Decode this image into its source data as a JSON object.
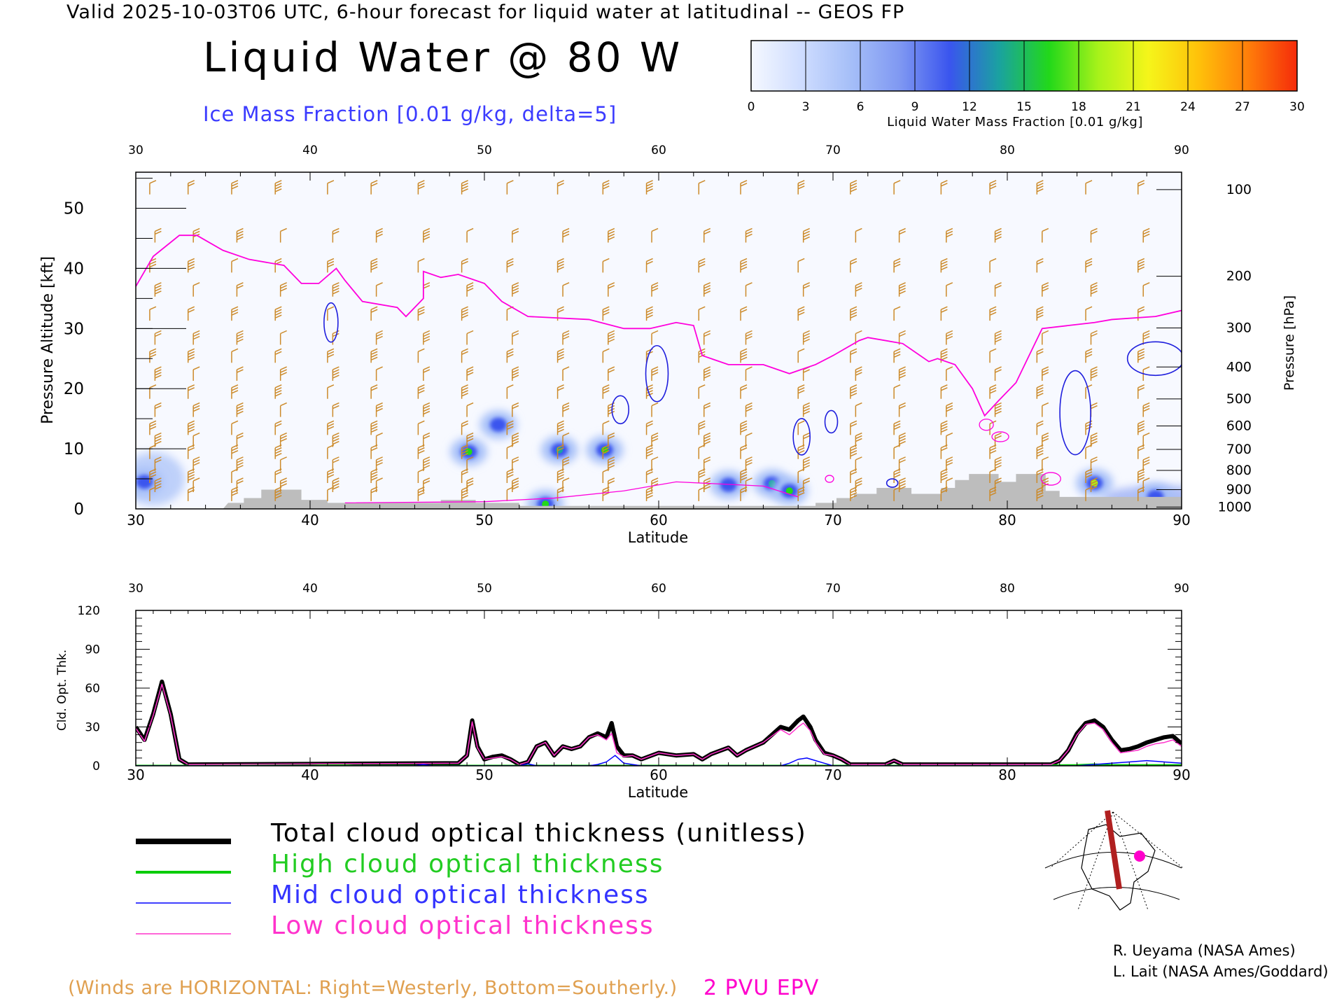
{
  "header": {
    "line": "Valid 2025-10-03T06 UTC, 6-hour forecast for liquid water at latitudinal -- GEOS FP",
    "title": "Liquid Water @ 80 W",
    "ice_label": "Ice Mass Fraction [0.01 g/kg, delta=5]"
  },
  "colorbar": {
    "label": "Liquid Water Mass Fraction [0.01 g/kg]",
    "ticks": [
      "0",
      "3",
      "6",
      "9",
      "12",
      "15",
      "18",
      "21",
      "24",
      "27",
      "30"
    ],
    "colors": [
      "#f5f8ff",
      "#cfddff",
      "#a6bff8",
      "#7f98f2",
      "#3a55ee",
      "#1aa2a0",
      "#22d81a",
      "#a8f21a",
      "#f5f51a",
      "#ffc20a",
      "#ff7f0a",
      "#f52b0a"
    ]
  },
  "chart_data": [
    {
      "type": "heatmap",
      "title": "Liquid Water @ 80 W",
      "xlabel": "Latitude",
      "ylabel": "Pressure Altitude [kft]",
      "y2label": "Pressure [hPa]",
      "xlim": [
        30,
        90
      ],
      "ylim": [
        0,
        56
      ],
      "x_ticks": [
        "30",
        "40",
        "50",
        "60",
        "70",
        "80",
        "90"
      ],
      "y_ticks": [
        "0",
        "10",
        "20",
        "30",
        "40",
        "50"
      ],
      "pressure_ticks": [
        {
          "label": "100",
          "kft": 53.1
        },
        {
          "label": "200",
          "kft": 38.7
        },
        {
          "label": "300",
          "kft": 30.1
        },
        {
          "label": "400",
          "kft": 23.6
        },
        {
          "label": "500",
          "kft": 18.3
        },
        {
          "label": "600",
          "kft": 13.8
        },
        {
          "label": "700",
          "kft": 9.9
        },
        {
          "label": "800",
          "kft": 6.4
        },
        {
          "label": "900",
          "kft": 3.2
        },
        {
          "label": "1000",
          "kft": 0.3
        }
      ],
      "liquid_water_blobs": [
        {
          "lat": 30.5,
          "kft": 4.5,
          "value": 5
        },
        {
          "lat": 49.1,
          "kft": 9.5,
          "value": 16
        },
        {
          "lat": 50.8,
          "kft": 14.0,
          "value": 4
        },
        {
          "lat": 54.3,
          "kft": 9.8,
          "value": 14
        },
        {
          "lat": 56.9,
          "kft": 9.8,
          "value": 15
        },
        {
          "lat": 53.5,
          "kft": 0.8,
          "value": 15
        },
        {
          "lat": 66.5,
          "kft": 4.2,
          "value": 13
        },
        {
          "lat": 67.5,
          "kft": 3.0,
          "value": 15
        },
        {
          "lat": 64.0,
          "kft": 4.0,
          "value": 9
        },
        {
          "lat": 85.0,
          "kft": 4.3,
          "value": 18
        },
        {
          "lat": 88.5,
          "kft": 2.0,
          "value": 10
        }
      ],
      "pvu_2_line": [
        [
          30,
          37
        ],
        [
          31,
          42
        ],
        [
          32.5,
          45.5
        ],
        [
          33.5,
          45.5
        ],
        [
          35,
          43
        ],
        [
          36.5,
          41.5
        ],
        [
          38.5,
          40.5
        ],
        [
          39.5,
          37.5
        ],
        [
          40.5,
          37.5
        ],
        [
          41.5,
          40
        ],
        [
          42,
          38
        ],
        [
          43,
          34.5
        ],
        [
          45,
          33.5
        ],
        [
          45.5,
          32
        ],
        [
          46.5,
          35
        ],
        [
          46.5,
          39.5
        ],
        [
          47.5,
          38.5
        ],
        [
          48.5,
          39
        ],
        [
          50,
          37.5
        ],
        [
          51,
          34.5
        ],
        [
          52.5,
          32
        ],
        [
          56,
          31.5
        ],
        [
          58,
          30
        ],
        [
          59.5,
          30
        ],
        [
          61,
          31
        ],
        [
          62,
          30.5
        ],
        [
          62.5,
          25.5
        ],
        [
          64,
          24
        ],
        [
          66,
          24
        ],
        [
          67.5,
          22.5
        ],
        [
          69,
          24
        ],
        [
          70,
          25.5
        ],
        [
          71.5,
          28
        ],
        [
          72,
          28.5
        ],
        [
          74,
          27.5
        ],
        [
          75.5,
          24.5
        ],
        [
          76,
          25
        ],
        [
          77,
          24
        ],
        [
          78,
          20
        ],
        [
          78.7,
          15.5
        ],
        [
          79.5,
          18
        ],
        [
          80.5,
          21
        ],
        [
          81.5,
          27
        ],
        [
          82,
          30
        ],
        [
          83.5,
          30.5
        ],
        [
          85,
          31
        ],
        [
          86,
          31.5
        ],
        [
          88.5,
          32
        ],
        [
          90,
          33
        ]
      ],
      "terrain": [
        [
          30,
          0
        ],
        [
          35,
          0
        ],
        [
          35.3,
          1.0
        ],
        [
          36.2,
          1.0
        ],
        [
          36.2,
          1.8
        ],
        [
          37.2,
          1.8
        ],
        [
          37.2,
          3.2
        ],
        [
          39.5,
          3.2
        ],
        [
          39.5,
          1.5
        ],
        [
          41,
          1.5
        ],
        [
          41,
          1.0
        ],
        [
          47.5,
          1.0
        ],
        [
          47.5,
          1.5
        ],
        [
          49.5,
          1.5
        ],
        [
          49.5,
          1.0
        ],
        [
          52,
          1.0
        ],
        [
          52,
          0.5
        ],
        [
          69,
          0.5
        ],
        [
          69,
          1.0
        ],
        [
          70.2,
          1.0
        ],
        [
          70.2,
          1.8
        ],
        [
          71.2,
          1.8
        ],
        [
          71.2,
          2.5
        ],
        [
          72.5,
          2.5
        ],
        [
          72.5,
          3.5
        ],
        [
          74.5,
          3.5
        ],
        [
          74.5,
          2.5
        ],
        [
          76.2,
          2.5
        ],
        [
          76.2,
          3.5
        ],
        [
          77,
          3.5
        ],
        [
          77,
          4.8
        ],
        [
          77.8,
          4.8
        ],
        [
          77.8,
          5.8
        ],
        [
          79.5,
          5.8
        ],
        [
          79.5,
          4.5
        ],
        [
          80.5,
          4.5
        ],
        [
          80.5,
          5.8
        ],
        [
          82.2,
          5.8
        ],
        [
          82.2,
          3.0
        ],
        [
          83,
          3.0
        ],
        [
          83,
          2.0
        ],
        [
          90,
          2.0
        ],
        [
          90,
          0
        ]
      ]
    },
    {
      "type": "line",
      "xlabel": "Latitude",
      "ylabel": "Cld. Opt. Thk.",
      "xlim": [
        30,
        90
      ],
      "ylim": [
        0,
        120
      ],
      "x_ticks": [
        "30",
        "40",
        "50",
        "60",
        "70",
        "80",
        "90"
      ],
      "y_ticks": [
        "0",
        "30",
        "60",
        "90",
        "120"
      ],
      "series": [
        {
          "name": "Total cloud optical thickness (unitless)",
          "color": "#000000",
          "x": [
            30,
            30.5,
            31,
            31.5,
            32,
            32.5,
            33,
            48.5,
            49,
            49.3,
            49.6,
            50,
            50.5,
            51,
            51.5,
            52,
            52.5,
            53,
            53.5,
            54,
            54.5,
            55,
            55.5,
            56,
            56.5,
            57,
            57.3,
            57.6,
            58,
            58.5,
            59,
            60,
            61,
            62,
            62.5,
            63,
            64,
            64.5,
            65,
            66,
            66.5,
            67,
            67.5,
            68,
            68.3,
            68.7,
            69,
            69.5,
            70,
            70.5,
            71,
            73,
            73.5,
            74,
            82,
            82.5,
            83,
            83.5,
            84,
            84.5,
            85,
            85.5,
            86,
            86.5,
            87,
            87.5,
            88,
            88.5,
            89,
            89.5,
            90
          ],
          "values": [
            30,
            20,
            40,
            65,
            40,
            5,
            1,
            2,
            8,
            35,
            15,
            5,
            7,
            8,
            5,
            1,
            3,
            15,
            18,
            8,
            15,
            13,
            15,
            22,
            25,
            22,
            33,
            15,
            8,
            8,
            5,
            10,
            8,
            9,
            5,
            9,
            14,
            8,
            12,
            18,
            24,
            30,
            28,
            35,
            38,
            30,
            20,
            10,
            8,
            5,
            1,
            1,
            4,
            1,
            1,
            1,
            4,
            12,
            25,
            33,
            35,
            30,
            20,
            12,
            13,
            15,
            18,
            20,
            22,
            23,
            17
          ]
        },
        {
          "name": "High cloud optical thickness",
          "color": "#00cc00",
          "x": [
            30,
            40,
            41.5,
            42.5,
            50,
            60,
            80,
            84,
            85,
            86,
            88,
            90
          ],
          "values": [
            0,
            0,
            0.8,
            0,
            0,
            0,
            0,
            0.5,
            1,
            0.5,
            0.5,
            0.5
          ]
        },
        {
          "name": "Mid cloud optical thickness",
          "color": "#0000ff",
          "x": [
            30,
            46,
            46.5,
            47,
            52,
            52.5,
            53,
            56,
            56.5,
            57,
            57.5,
            58,
            59,
            67,
            67.5,
            68,
            68.5,
            69,
            69.5,
            70,
            84,
            85,
            86,
            87,
            88,
            89,
            90
          ],
          "values": [
            0,
            0,
            1,
            0,
            0,
            1.5,
            0,
            0,
            1,
            3,
            8,
            2,
            0,
            0,
            2,
            5,
            6,
            4,
            2,
            0,
            0,
            1,
            2,
            3,
            4,
            3,
            2
          ]
        },
        {
          "name": "Low cloud optical thickness",
          "color": "#ff33cc",
          "x": [
            30,
            30.5,
            31,
            31.5,
            32,
            32.5,
            33,
            48.5,
            49,
            49.3,
            49.6,
            50,
            50.5,
            51,
            51.5,
            52,
            52.5,
            53,
            53.5,
            54,
            54.5,
            55,
            55.5,
            56,
            56.5,
            57,
            57.3,
            57.6,
            58,
            58.5,
            59,
            60,
            61,
            62,
            62.5,
            63,
            64,
            64.5,
            65,
            66,
            66.5,
            67,
            67.5,
            68,
            68.3,
            68.7,
            69,
            69.5,
            70,
            70.5,
            71,
            73,
            73.5,
            74,
            82,
            82.5,
            83,
            83.5,
            84,
            84.5,
            85,
            85.5,
            86,
            86.5,
            87,
            87.5,
            88,
            88.5,
            89,
            89.5,
            90
          ],
          "values": [
            29,
            19,
            39,
            63,
            39,
            5,
            1,
            2,
            8,
            34,
            14,
            5,
            6,
            7,
            5,
            1,
            3,
            15,
            18,
            8,
            15,
            13,
            15,
            22,
            24,
            20,
            25,
            10,
            7,
            8,
            5,
            10,
            8,
            9,
            5,
            9,
            14,
            8,
            12,
            18,
            23,
            28,
            24,
            30,
            33,
            27,
            18,
            9,
            8,
            5,
            1,
            1,
            4,
            1,
            1,
            1,
            4,
            12,
            24,
            32,
            33,
            28,
            18,
            10,
            11,
            12,
            15,
            17,
            18,
            20,
            15
          ]
        }
      ]
    }
  ],
  "legend": {
    "total": "Total cloud optical thickness (unitless)",
    "high": "High cloud optical thickness",
    "mid": "Mid cloud optical thickness",
    "low": "Low cloud optical thickness"
  },
  "footer": {
    "winds_note": "(Winds are HORIZONTAL: Right=Westerly, Bottom=Southerly.)",
    "pvu_label": "2 PVU EPV",
    "credit_1": "R. Ueyama (NASA Ames)",
    "credit_2": "L. Lait (NASA Ames/Goddard)"
  },
  "colors": {
    "ice_contour": "#1f1fdd",
    "pvu_line": "#ff00dd",
    "wind_barbs": "#cc8a2a",
    "terrain": "#bdbdbd"
  }
}
